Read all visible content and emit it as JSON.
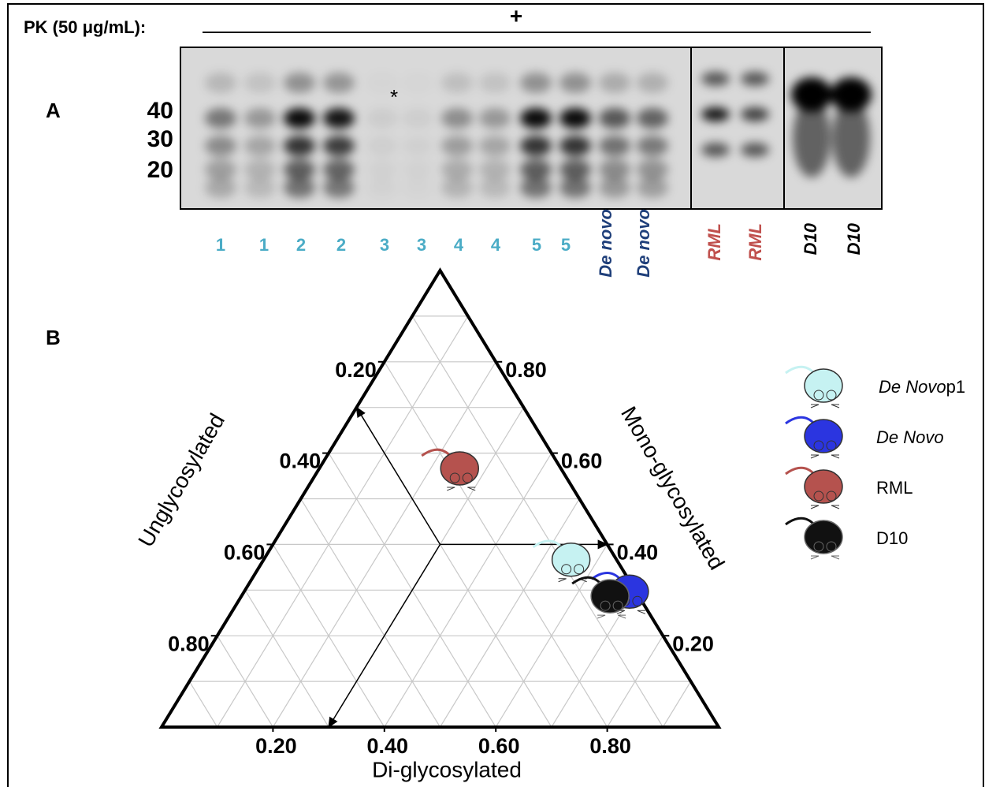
{
  "panel_a": {
    "label": "A",
    "pk_label": "PK (50 μg/mL):",
    "pk_sign": "+",
    "markers": [
      "40",
      "30",
      "20"
    ],
    "asterisk": "*",
    "lanes": [
      {
        "label": "1",
        "color": "#4bacc6"
      },
      {
        "label": "1",
        "color": "#4bacc6"
      },
      {
        "label": "2",
        "color": "#4bacc6"
      },
      {
        "label": "2",
        "color": "#4bacc6"
      },
      {
        "label": "3",
        "color": "#4bacc6"
      },
      {
        "label": "3",
        "color": "#4bacc6"
      },
      {
        "label": "4",
        "color": "#4bacc6"
      },
      {
        "label": "4",
        "color": "#4bacc6"
      },
      {
        "label": "5",
        "color": "#4bacc6"
      },
      {
        "label": "5",
        "color": "#4bacc6"
      },
      {
        "label": "De novo",
        "color": "#1f3f7a"
      },
      {
        "label": "De novo",
        "color": "#1f3f7a"
      },
      {
        "label": "RML",
        "color": "#c0504d"
      },
      {
        "label": "RML",
        "color": "#c0504d"
      },
      {
        "label": "D10",
        "color": "#000000"
      },
      {
        "label": "D10",
        "color": "#000000"
      }
    ]
  },
  "panel_b": {
    "label": "B",
    "axes": {
      "left": {
        "title": "Unglycosylated",
        "ticks": [
          {
            "value": 0.2,
            "label": "0.20"
          },
          {
            "value": 0.4,
            "label": "0.40"
          },
          {
            "value": 0.6,
            "label": "0.60"
          },
          {
            "value": 0.8,
            "label": "0.80"
          }
        ]
      },
      "right": {
        "title": "Mono-glycosylated",
        "ticks": [
          {
            "value": 0.8,
            "label": "0.80"
          },
          {
            "value": 0.6,
            "label": "0.60"
          },
          {
            "value": 0.4,
            "label": "0.40"
          },
          {
            "value": 0.2,
            "label": "0.20"
          }
        ]
      },
      "bottom": {
        "title": "Di-glycosylated",
        "ticks": [
          {
            "value": 0.2,
            "label": "0.20"
          },
          {
            "value": 0.4,
            "label": "0.40"
          },
          {
            "value": 0.6,
            "label": "0.60"
          },
          {
            "value": 0.8,
            "label": "0.80"
          }
        ]
      }
    },
    "points": [
      {
        "name": "De Novo",
        "suffix": "p1",
        "color": "#c6f2f2",
        "unglycosylated": 0.08,
        "mono": 0.37,
        "di": 0.55
      },
      {
        "name": "De Novo",
        "color": "#2b35e0",
        "unglycosylated": 0.01,
        "mono": 0.3,
        "di": 0.69
      },
      {
        "name": "RML",
        "color": "#b5524e",
        "unglycosylated": 0.18,
        "mono": 0.57,
        "di": 0.25
      },
      {
        "name": "D10",
        "color": "#111111",
        "unglycosylated": 0.05,
        "mono": 0.29,
        "di": 0.66
      }
    ]
  }
}
